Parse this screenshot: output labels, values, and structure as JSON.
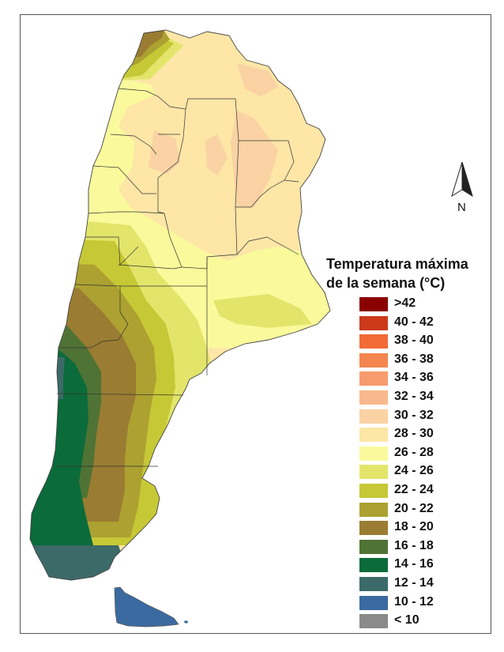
{
  "legend": {
    "title_line1": "Temperatura máxima",
    "title_line2": "de la semana (°C)",
    "items": [
      {
        "label": ">42",
        "color": "#8b0000"
      },
      {
        "label": "40 - 42",
        "color": "#cc3a1a"
      },
      {
        "label": "38 - 40",
        "color": "#f26a36"
      },
      {
        "label": "36 - 38",
        "color": "#f5854f"
      },
      {
        "label": "34 - 36",
        "color": "#f79b6c"
      },
      {
        "label": "32 - 34",
        "color": "#f9b98c"
      },
      {
        "label": "30 - 32",
        "color": "#fad2a4"
      },
      {
        "label": "28 - 30",
        "color": "#fde6a6"
      },
      {
        "label": "26 - 28",
        "color": "#fafa9c"
      },
      {
        "label": "24 - 26",
        "color": "#e3e56b"
      },
      {
        "label": "22 - 24",
        "color": "#c6c835"
      },
      {
        "label": "20 - 22",
        "color": "#aca131"
      },
      {
        "label": "18 - 20",
        "color": "#9a7c32"
      },
      {
        "label": "16 - 18",
        "color": "#4f7334"
      },
      {
        "label": "14 - 16",
        "color": "#0b6b3a"
      },
      {
        "label": "12 - 14",
        "color": "#3c6a68"
      },
      {
        "label": "10 - 12",
        "color": "#3b6aa0"
      },
      {
        "label": "< 10",
        "color": "#8a8a8a"
      }
    ]
  },
  "north_arrow": {
    "label": "N"
  }
}
